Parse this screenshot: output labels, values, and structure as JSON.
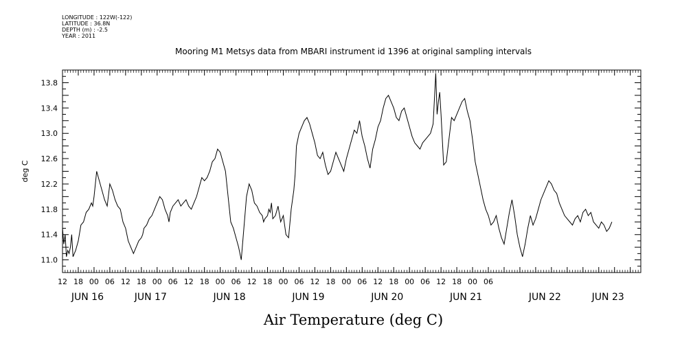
{
  "meta": {
    "longitude": "LONGITUDE : 122W(-122)",
    "latitude": "LATITUDE : 36.8N",
    "depth": "DEPTH (m) : -2.5",
    "year": "YEAR : 2011"
  },
  "chart_data": {
    "type": "line",
    "title": "Mooring M1 Metsys data from MBARI instrument id 1396 at original sampling intervals",
    "xlabel": "Air Temperature (deg C)",
    "ylabel": "deg C",
    "xlim_hours_label": "hours since 2011-06-15 12:00",
    "ylim": [
      10.8,
      14.0
    ],
    "yticks": [
      11.0,
      11.4,
      11.8,
      12.2,
      12.6,
      13.0,
      13.4,
      13.8
    ],
    "hour_tick_labels": [
      "12",
      "18",
      "00",
      "06",
      "12",
      "18",
      "00",
      "06",
      "12",
      "18",
      "00",
      "06",
      "12",
      "18",
      "00",
      "06",
      "12",
      "18",
      "00",
      "06",
      "12",
      "18",
      "00",
      "06",
      "12",
      "18",
      "00",
      "06"
    ],
    "day_labels": [
      "JUN 16",
      "JUN 17",
      "JUN 18",
      "JUN 19",
      "JUN 20",
      "JUN 21",
      "JUN 22",
      "JUN 23"
    ],
    "grid": false,
    "series": [
      {
        "values_x_hours": [
          0,
          0.5,
          1,
          1.5,
          2,
          2.5,
          3,
          3.5,
          4,
          5,
          6,
          7,
          8,
          9,
          10,
          11,
          11.5,
          12,
          12.5,
          13,
          14,
          15,
          16,
          17,
          18,
          19,
          20,
          21,
          22,
          23,
          24,
          25,
          26,
          27,
          28,
          29,
          30,
          30.5,
          31,
          32,
          33,
          34,
          35,
          36,
          37,
          38,
          39,
          40,
          40.5,
          41,
          42,
          43,
          44,
          45,
          46,
          47,
          48,
          49,
          50,
          51,
          52,
          53,
          54,
          55,
          56,
          57,
          58,
          59,
          60,
          61,
          62,
          63,
          64,
          65,
          66,
          67,
          68,
          69,
          70,
          71,
          72,
          73,
          74,
          75,
          76,
          76.5,
          77,
          78,
          78.5,
          79,
          79.5,
          80,
          81,
          82,
          83,
          84,
          85,
          86,
          87,
          88,
          88.5,
          89,
          90,
          91,
          92,
          93,
          94,
          95,
          96,
          97,
          98,
          99,
          100,
          101,
          102,
          103,
          104,
          105,
          106,
          107,
          108,
          109,
          110,
          111,
          112,
          113,
          114,
          115,
          116,
          117,
          118,
          119,
          120,
          121,
          122,
          123,
          124,
          125,
          126,
          127,
          128,
          129,
          130,
          131,
          132,
          133,
          134,
          135,
          136,
          137,
          138,
          139,
          140,
          141,
          142,
          142.5,
          143,
          143.5,
          144,
          145,
          146,
          147,
          148,
          149,
          150,
          151,
          152,
          153,
          154,
          155,
          156,
          157,
          158,
          159,
          160,
          161,
          162,
          163,
          164,
          165,
          166,
          167,
          168,
          169,
          170,
          171,
          172,
          173,
          174,
          175,
          176,
          177,
          178,
          179,
          180,
          181,
          182,
          183,
          184,
          185,
          186,
          187,
          188,
          189,
          190,
          191,
          192,
          193,
          194,
          195,
          196,
          197,
          198,
          199,
          200,
          201,
          202,
          203,
          204,
          205,
          206,
          207,
          208,
          209,
          210,
          211,
          212,
          213,
          214,
          215,
          216,
          217,
          218,
          219,
          220
        ],
        "values_y": [
          11.5,
          11.25,
          11.4,
          11.05,
          11.15,
          11.1,
          11.2,
          11.4,
          11.05,
          11.15,
          11.3,
          11.55,
          11.6,
          11.75,
          11.8,
          11.9,
          11.85,
          12.0,
          12.2,
          12.4,
          12.25,
          12.1,
          11.95,
          11.85,
          12.2,
          12.1,
          11.95,
          11.85,
          11.8,
          11.6,
          11.5,
          11.3,
          11.2,
          11.1,
          11.2,
          11.3,
          11.35,
          11.4,
          11.5,
          11.55,
          11.65,
          11.7,
          11.8,
          11.9,
          12.0,
          11.95,
          11.8,
          11.7,
          11.6,
          11.75,
          11.85,
          11.9,
          11.95,
          11.85,
          11.9,
          11.95,
          11.85,
          11.8,
          11.9,
          12.0,
          12.15,
          12.3,
          12.25,
          12.3,
          12.4,
          12.55,
          12.6,
          12.75,
          12.7,
          12.55,
          12.4,
          12.0,
          11.6,
          11.5,
          11.35,
          11.2,
          11.0,
          11.5,
          12.0,
          12.2,
          12.1,
          11.9,
          11.85,
          11.75,
          11.7,
          11.6,
          11.65,
          11.7,
          11.8,
          11.75,
          11.9,
          11.65,
          11.7,
          11.85,
          11.6,
          11.7,
          11.4,
          11.35,
          11.8,
          12.1,
          12.35,
          12.8,
          13.0,
          13.1,
          13.2,
          13.25,
          13.15,
          13.0,
          12.85,
          12.65,
          12.6,
          12.7,
          12.5,
          12.35,
          12.4,
          12.55,
          12.7,
          12.6,
          12.5,
          12.4,
          12.6,
          12.75,
          12.9,
          13.05,
          13.0,
          13.2,
          12.95,
          12.8,
          12.6,
          12.45,
          12.75,
          12.9,
          13.1,
          13.2,
          13.4,
          13.55,
          13.6,
          13.5,
          13.4,
          13.25,
          13.2,
          13.35,
          13.4,
          13.25,
          13.1,
          12.95,
          12.85,
          12.8,
          12.75,
          12.85,
          12.9,
          12.95,
          13.0,
          13.15,
          13.95,
          13.3,
          13.5,
          13.65,
          13.3,
          12.5,
          12.55,
          12.9,
          13.25,
          13.2,
          13.3,
          13.4,
          13.5,
          13.55,
          13.35,
          13.2,
          12.9,
          12.55,
          12.35,
          12.15,
          11.95,
          11.8,
          11.7,
          11.55,
          11.6,
          11.7,
          11.5,
          11.35,
          11.25,
          11.5,
          11.75,
          11.95,
          11.7,
          11.4,
          11.2,
          11.05,
          11.25,
          11.5,
          11.7,
          11.55,
          11.65,
          11.8,
          11.95,
          12.05,
          12.15,
          12.25,
          12.2,
          12.1,
          12.05,
          11.9,
          11.8,
          11.7,
          11.65,
          11.6,
          11.55,
          11.65,
          11.7,
          11.6,
          11.75,
          11.8,
          11.7,
          11.75,
          11.6,
          11.55,
          11.5,
          11.6,
          11.55,
          11.45,
          11.5,
          11.6
        ]
      }
    ]
  }
}
